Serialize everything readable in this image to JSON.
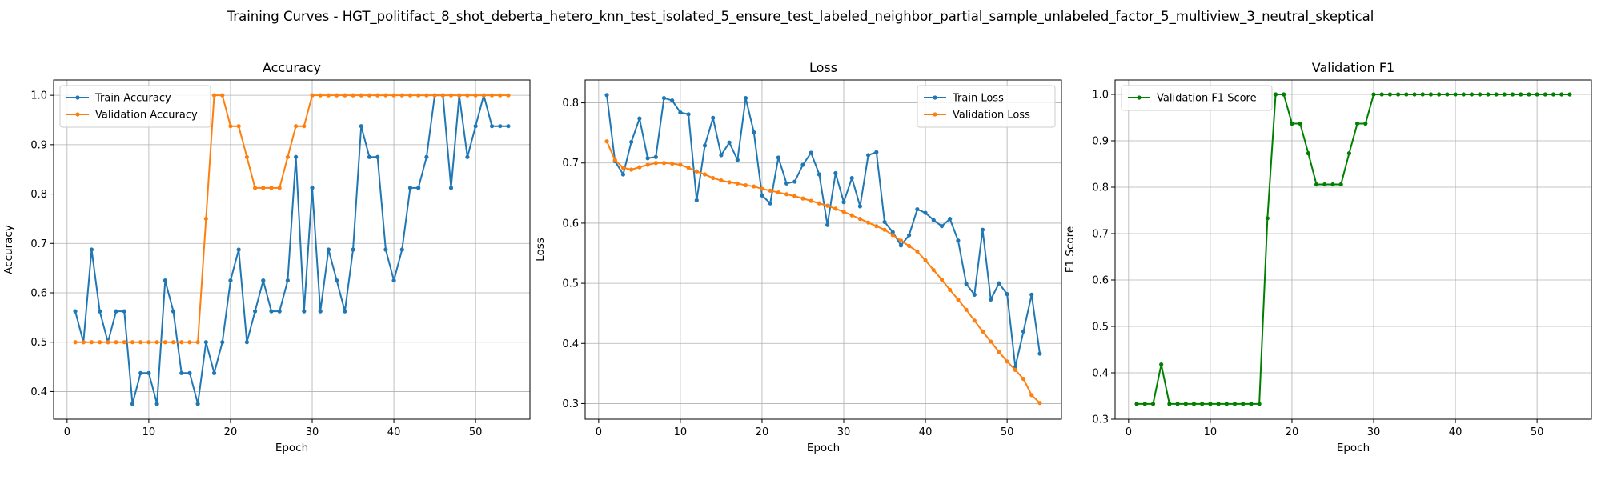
{
  "figure": {
    "suptitle": "Training Curves - HGT_politifact_8_shot_deberta_hetero_knn_test_isolated_5_ensure_test_labeled_neighbor_partial_sample_unlabeled_factor_5_multiview_3_neutral_skeptical"
  },
  "colors": {
    "blue": "#1f77b4",
    "orange": "#ff7f0e",
    "green": "#008000",
    "grid": "#b0b0b0"
  },
  "chart_data": [
    {
      "type": "line",
      "title": "Accuracy",
      "xlabel": "Epoch",
      "ylabel": "Accuracy",
      "xlim": [
        -1.65,
        56.65
      ],
      "ylim": [
        0.344,
        1.031
      ],
      "xticks": [
        0,
        10,
        20,
        30,
        40,
        50
      ],
      "yticks": [
        0.4,
        0.5,
        0.6,
        0.7,
        0.8,
        0.9,
        1.0
      ],
      "ytick_labels": [
        "0.4",
        "0.5",
        "0.6",
        "0.7",
        "0.8",
        "0.9",
        "1.0"
      ],
      "grid": true,
      "legend": "upper left",
      "series": [
        {
          "name": "Train Accuracy",
          "color": "#1f77b4",
          "x": [
            1,
            2,
            3,
            4,
            5,
            6,
            7,
            8,
            9,
            10,
            11,
            12,
            13,
            14,
            15,
            16,
            17,
            18,
            19,
            20,
            21,
            22,
            23,
            24,
            25,
            26,
            27,
            28,
            29,
            30,
            31,
            32,
            33,
            34,
            35,
            36,
            37,
            38,
            39,
            40,
            41,
            42,
            43,
            44,
            45,
            46,
            47,
            48,
            49,
            50,
            51,
            52,
            53,
            54
          ],
          "y": [
            0.5625,
            0.5,
            0.6875,
            0.5625,
            0.5,
            0.5625,
            0.5625,
            0.375,
            0.4375,
            0.4375,
            0.375,
            0.625,
            0.5625,
            0.4375,
            0.4375,
            0.375,
            0.5,
            0.4375,
            0.5,
            0.625,
            0.6875,
            0.5,
            0.5625,
            0.625,
            0.5625,
            0.5625,
            0.625,
            0.875,
            0.5625,
            0.8125,
            0.5625,
            0.6875,
            0.625,
            0.5625,
            0.6875,
            0.9375,
            0.875,
            0.875,
            0.6875,
            0.625,
            0.6875,
            0.8125,
            0.8125,
            0.875,
            1.0,
            1.0,
            0.8125,
            1.0,
            0.875,
            0.9375,
            1.0,
            0.9375,
            0.9375,
            0.9375
          ]
        },
        {
          "name": "Validation Accuracy",
          "color": "#ff7f0e",
          "x": [
            1,
            2,
            3,
            4,
            5,
            6,
            7,
            8,
            9,
            10,
            11,
            12,
            13,
            14,
            15,
            16,
            17,
            18,
            19,
            20,
            21,
            22,
            23,
            24,
            25,
            26,
            27,
            28,
            29,
            30,
            31,
            32,
            33,
            34,
            35,
            36,
            37,
            38,
            39,
            40,
            41,
            42,
            43,
            44,
            45,
            46,
            47,
            48,
            49,
            50,
            51,
            52,
            53,
            54
          ],
          "y": [
            0.5,
            0.5,
            0.5,
            0.5,
            0.5,
            0.5,
            0.5,
            0.5,
            0.5,
            0.5,
            0.5,
            0.5,
            0.5,
            0.5,
            0.5,
            0.5,
            0.75,
            1.0,
            1.0,
            0.9375,
            0.9375,
            0.875,
            0.8125,
            0.8125,
            0.8125,
            0.8125,
            0.875,
            0.9375,
            0.9375,
            1.0,
            1.0,
            1.0,
            1.0,
            1.0,
            1.0,
            1.0,
            1.0,
            1.0,
            1.0,
            1.0,
            1.0,
            1.0,
            1.0,
            1.0,
            1.0,
            1.0,
            1.0,
            1.0,
            1.0,
            1.0,
            1.0,
            1.0,
            1.0,
            1.0
          ]
        }
      ]
    },
    {
      "type": "line",
      "title": "Loss",
      "xlabel": "Epoch",
      "ylabel": "Loss",
      "xlim": [
        -1.65,
        56.65
      ],
      "ylim": [
        0.274,
        0.838
      ],
      "xticks": [
        0,
        10,
        20,
        30,
        40,
        50
      ],
      "yticks": [
        0.3,
        0.4,
        0.5,
        0.6,
        0.7,
        0.8
      ],
      "ytick_labels": [
        "0.3",
        "0.4",
        "0.5",
        "0.6",
        "0.7",
        "0.8"
      ],
      "grid": true,
      "legend": "upper right",
      "series": [
        {
          "name": "Train Loss",
          "color": "#1f77b4",
          "x": [
            1,
            2,
            3,
            4,
            5,
            6,
            7,
            8,
            9,
            10,
            11,
            12,
            13,
            14,
            15,
            16,
            17,
            18,
            19,
            20,
            21,
            22,
            23,
            24,
            25,
            26,
            27,
            28,
            29,
            30,
            31,
            32,
            33,
            34,
            35,
            36,
            37,
            38,
            39,
            40,
            41,
            42,
            43,
            44,
            45,
            46,
            47,
            48,
            49,
            50,
            51,
            52,
            53,
            54
          ],
          "y": [
            0.813,
            0.703,
            0.681,
            0.735,
            0.774,
            0.708,
            0.71,
            0.808,
            0.804,
            0.784,
            0.781,
            0.638,
            0.729,
            0.775,
            0.713,
            0.734,
            0.705,
            0.808,
            0.751,
            0.646,
            0.633,
            0.709,
            0.666,
            0.669,
            0.697,
            0.717,
            0.681,
            0.597,
            0.683,
            0.635,
            0.675,
            0.628,
            0.713,
            0.718,
            0.602,
            0.585,
            0.563,
            0.58,
            0.623,
            0.617,
            0.605,
            0.595,
            0.607,
            0.571,
            0.499,
            0.481,
            0.589,
            0.473,
            0.5,
            0.482,
            0.361,
            0.42,
            0.481,
            0.383
          ]
        },
        {
          "name": "Validation Loss",
          "color": "#ff7f0e",
          "x": [
            1,
            2,
            3,
            4,
            5,
            6,
            7,
            8,
            9,
            10,
            11,
            12,
            13,
            14,
            15,
            16,
            17,
            18,
            19,
            20,
            21,
            22,
            23,
            24,
            25,
            26,
            27,
            28,
            29,
            30,
            31,
            32,
            33,
            34,
            35,
            36,
            37,
            38,
            39,
            40,
            41,
            42,
            43,
            44,
            45,
            46,
            47,
            48,
            49,
            50,
            51,
            52,
            53,
            54
          ],
          "y": [
            0.736,
            0.705,
            0.692,
            0.689,
            0.693,
            0.697,
            0.7,
            0.7,
            0.699,
            0.697,
            0.692,
            0.686,
            0.681,
            0.675,
            0.671,
            0.668,
            0.666,
            0.663,
            0.661,
            0.657,
            0.654,
            0.651,
            0.648,
            0.645,
            0.641,
            0.637,
            0.633,
            0.629,
            0.624,
            0.619,
            0.613,
            0.607,
            0.601,
            0.595,
            0.589,
            0.58,
            0.571,
            0.562,
            0.553,
            0.538,
            0.522,
            0.506,
            0.489,
            0.473,
            0.456,
            0.438,
            0.42,
            0.403,
            0.386,
            0.37,
            0.356,
            0.341,
            0.314,
            0.301
          ]
        }
      ]
    },
    {
      "type": "line",
      "title": "Validation F1",
      "xlabel": "Epoch",
      "ylabel": "F1 Score",
      "xlim": [
        -1.65,
        56.65
      ],
      "ylim": [
        0.3,
        1.031
      ],
      "xticks": [
        0,
        10,
        20,
        30,
        40,
        50
      ],
      "yticks": [
        0.3,
        0.4,
        0.5,
        0.6,
        0.7,
        0.8,
        0.9,
        1.0
      ],
      "ytick_labels": [
        "0.3",
        "0.4",
        "0.5",
        "0.6",
        "0.7",
        "0.8",
        "0.9",
        "1.0"
      ],
      "grid": true,
      "legend": "upper left",
      "series": [
        {
          "name": "Validation F1 Score",
          "color": "#008000",
          "x": [
            1,
            2,
            3,
            4,
            5,
            6,
            7,
            8,
            9,
            10,
            11,
            12,
            13,
            14,
            15,
            16,
            17,
            18,
            19,
            20,
            21,
            22,
            23,
            24,
            25,
            26,
            27,
            28,
            29,
            30,
            31,
            32,
            33,
            34,
            35,
            36,
            37,
            38,
            39,
            40,
            41,
            42,
            43,
            44,
            45,
            46,
            47,
            48,
            49,
            50,
            51,
            52,
            53,
            54
          ],
          "y": [
            0.333,
            0.333,
            0.333,
            0.418,
            0.333,
            0.333,
            0.333,
            0.333,
            0.333,
            0.333,
            0.333,
            0.333,
            0.333,
            0.333,
            0.333,
            0.333,
            0.733,
            1.0,
            1.0,
            0.937,
            0.937,
            0.873,
            0.806,
            0.806,
            0.806,
            0.806,
            0.873,
            0.937,
            0.937,
            1.0,
            1.0,
            1.0,
            1.0,
            1.0,
            1.0,
            1.0,
            1.0,
            1.0,
            1.0,
            1.0,
            1.0,
            1.0,
            1.0,
            1.0,
            1.0,
            1.0,
            1.0,
            1.0,
            1.0,
            1.0,
            1.0,
            1.0,
            1.0,
            1.0
          ]
        }
      ]
    }
  ]
}
